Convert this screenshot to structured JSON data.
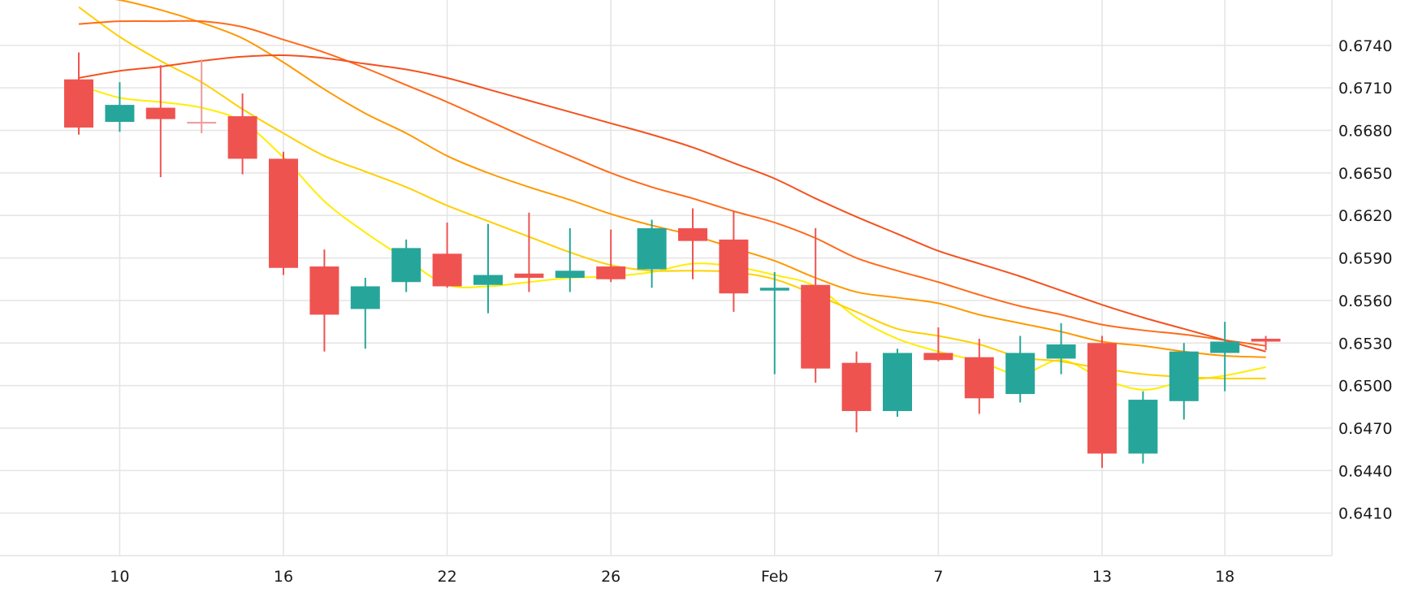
{
  "chart_data": {
    "type": "candlestick",
    "title": "",
    "xlabel": "",
    "ylabel": "",
    "ylim": [
      0.638,
      0.6772
    ],
    "y_ticks": [
      "0.6410",
      "0.6440",
      "0.6470",
      "0.6500",
      "0.6530",
      "0.6560",
      "0.6590",
      "0.6620",
      "0.6650",
      "0.6680",
      "0.6710",
      "0.6740"
    ],
    "x_ticks": [
      {
        "label": "10",
        "index": 1
      },
      {
        "label": "16",
        "index": 5
      },
      {
        "label": "22",
        "index": 9
      },
      {
        "label": "26",
        "index": 13
      },
      {
        "label": "Feb",
        "index": 17
      },
      {
        "label": "7",
        "index": 21
      },
      {
        "label": "13",
        "index": 25
      },
      {
        "label": "18",
        "index": 28
      }
    ],
    "grid": true,
    "colors": {
      "up": "#26a69a",
      "down": "#ef5350",
      "neutral": "#ef9a9a"
    },
    "candles": [
      {
        "o": 0.6716,
        "h": 0.6735,
        "l": 0.6677,
        "c": 0.6682
      },
      {
        "o": 0.6686,
        "h": 0.6714,
        "l": 0.6679,
        "c": 0.6698
      },
      {
        "o": 0.6696,
        "h": 0.6726,
        "l": 0.6647,
        "c": 0.6688
      },
      {
        "o": 0.6686,
        "h": 0.673,
        "l": 0.6678,
        "c": 0.6686
      },
      {
        "o": 0.669,
        "h": 0.6706,
        "l": 0.6649,
        "c": 0.666
      },
      {
        "o": 0.666,
        "h": 0.6665,
        "l": 0.6578,
        "c": 0.6583
      },
      {
        "o": 0.6584,
        "h": 0.6596,
        "l": 0.6524,
        "c": 0.655
      },
      {
        "o": 0.6554,
        "h": 0.6576,
        "l": 0.6526,
        "c": 0.657
      },
      {
        "o": 0.6573,
        "h": 0.6603,
        "l": 0.6566,
        "c": 0.6597
      },
      {
        "o": 0.6593,
        "h": 0.6615,
        "l": 0.6569,
        "c": 0.657
      },
      {
        "o": 0.6571,
        "h": 0.6614,
        "l": 0.6551,
        "c": 0.6578
      },
      {
        "o": 0.6579,
        "h": 0.6622,
        "l": 0.6566,
        "c": 0.6576
      },
      {
        "o": 0.6576,
        "h": 0.6611,
        "l": 0.6566,
        "c": 0.6581
      },
      {
        "o": 0.6584,
        "h": 0.661,
        "l": 0.6573,
        "c": 0.6575
      },
      {
        "o": 0.6582,
        "h": 0.6617,
        "l": 0.6569,
        "c": 0.6611
      },
      {
        "o": 0.6611,
        "h": 0.6625,
        "l": 0.6575,
        "c": 0.6602
      },
      {
        "o": 0.6603,
        "h": 0.6623,
        "l": 0.6552,
        "c": 0.6565
      },
      {
        "o": 0.6567,
        "h": 0.658,
        "l": 0.6508,
        "c": 0.6569
      },
      {
        "o": 0.6571,
        "h": 0.6611,
        "l": 0.6502,
        "c": 0.6512
      },
      {
        "o": 0.6516,
        "h": 0.6524,
        "l": 0.6467,
        "c": 0.6482
      },
      {
        "o": 0.6482,
        "h": 0.6526,
        "l": 0.6478,
        "c": 0.6523
      },
      {
        "o": 0.6523,
        "h": 0.6541,
        "l": 0.6517,
        "c": 0.6518
      },
      {
        "o": 0.652,
        "h": 0.6533,
        "l": 0.648,
        "c": 0.6491
      },
      {
        "o": 0.6494,
        "h": 0.6535,
        "l": 0.6488,
        "c": 0.6523
      },
      {
        "o": 0.6519,
        "h": 0.6544,
        "l": 0.6508,
        "c": 0.6529
      },
      {
        "o": 0.653,
        "h": 0.6535,
        "l": 0.6442,
        "c": 0.6452
      },
      {
        "o": 0.6452,
        "h": 0.6496,
        "l": 0.6445,
        "c": 0.649
      },
      {
        "o": 0.6489,
        "h": 0.653,
        "l": 0.6476,
        "c": 0.6524
      },
      {
        "o": 0.6523,
        "h": 0.6545,
        "l": 0.6496,
        "c": 0.6531
      },
      {
        "o": 0.6533,
        "h": 0.6535,
        "l": 0.6525,
        "c": 0.6531
      }
    ],
    "moving_averages": [
      {
        "color": "#ffee00",
        "x": [
          0,
          1,
          2,
          3,
          4,
          5,
          6,
          7,
          8,
          9,
          10,
          11,
          12,
          13,
          14,
          15,
          16,
          17,
          18,
          19,
          20,
          21,
          22,
          23,
          24,
          25,
          26,
          27,
          28,
          29
        ],
        "values": [
          0.6712,
          0.6703,
          0.67,
          0.6696,
          0.6686,
          0.6661,
          0.663,
          0.6608,
          0.6589,
          0.6571,
          0.657,
          0.6573,
          0.6576,
          0.6577,
          0.658,
          0.6586,
          0.6584,
          0.6578,
          0.657,
          0.6548,
          0.6533,
          0.6524,
          0.6517,
          0.6508,
          0.6518,
          0.6505,
          0.6497,
          0.6503,
          0.6507,
          0.6513
        ]
      },
      {
        "color": "#ffd000",
        "x": [
          0,
          1,
          2,
          3,
          4,
          5,
          6,
          7,
          8,
          9,
          10,
          11,
          12,
          13,
          14,
          15,
          16,
          17,
          18,
          19,
          20,
          21,
          22,
          23,
          24,
          25,
          26,
          27,
          28,
          29
        ],
        "values": [
          0.6767,
          0.6746,
          0.6729,
          0.6714,
          0.6695,
          0.6678,
          0.6662,
          0.6651,
          0.664,
          0.6627,
          0.6616,
          0.6605,
          0.6594,
          0.6585,
          0.6581,
          0.6581,
          0.658,
          0.6575,
          0.6564,
          0.6552,
          0.654,
          0.6535,
          0.6529,
          0.652,
          0.6517,
          0.6512,
          0.6508,
          0.6506,
          0.6505,
          0.6505
        ]
      },
      {
        "color": "#ff9800",
        "x": [
          0,
          1,
          2,
          3,
          4,
          5,
          6,
          7,
          8,
          9,
          10,
          11,
          12,
          13,
          14,
          15,
          16,
          17,
          18,
          19,
          20,
          21,
          22,
          23,
          24,
          25,
          26,
          27,
          28,
          29
        ],
        "values": [
          0.6776,
          0.6772,
          0.6765,
          0.6756,
          0.6745,
          0.6728,
          0.6709,
          0.6692,
          0.6678,
          0.6662,
          0.665,
          0.664,
          0.6631,
          0.6621,
          0.6613,
          0.6606,
          0.6597,
          0.6588,
          0.6576,
          0.6566,
          0.6562,
          0.6558,
          0.655,
          0.6544,
          0.6538,
          0.6531,
          0.6528,
          0.6524,
          0.6521,
          0.652
        ]
      },
      {
        "color": "#ff6a1a",
        "x": [
          0,
          1,
          2,
          3,
          4,
          5,
          6,
          7,
          8,
          9,
          10,
          11,
          12,
          13,
          14,
          15,
          16,
          17,
          18,
          19,
          20,
          21,
          22,
          23,
          24,
          25,
          26,
          27,
          28,
          29
        ],
        "values": [
          0.6755,
          0.6757,
          0.6757,
          0.6757,
          0.6753,
          0.6744,
          0.6735,
          0.6724,
          0.6712,
          0.67,
          0.6687,
          0.6674,
          0.6662,
          0.665,
          0.664,
          0.6632,
          0.6623,
          0.6615,
          0.6604,
          0.659,
          0.6581,
          0.6573,
          0.6564,
          0.6556,
          0.655,
          0.6543,
          0.6539,
          0.6536,
          0.6532,
          0.6528
        ]
      },
      {
        "color": "#f4511e",
        "x": [
          0,
          1,
          2,
          3,
          4,
          5,
          6,
          7,
          8,
          9,
          10,
          11,
          12,
          13,
          14,
          15,
          16,
          17,
          18,
          19,
          20,
          21,
          22,
          23,
          24,
          25,
          26,
          27,
          28,
          29
        ],
        "values": [
          0.6717,
          0.6722,
          0.6725,
          0.6729,
          0.6732,
          0.6733,
          0.6731,
          0.6727,
          0.6723,
          0.6717,
          0.6709,
          0.6701,
          0.6693,
          0.6685,
          0.6677,
          0.6668,
          0.6657,
          0.6646,
          0.6632,
          0.6619,
          0.6607,
          0.6595,
          0.6586,
          0.6577,
          0.6567,
          0.6557,
          0.6548,
          0.654,
          0.6532,
          0.6524
        ]
      }
    ]
  }
}
